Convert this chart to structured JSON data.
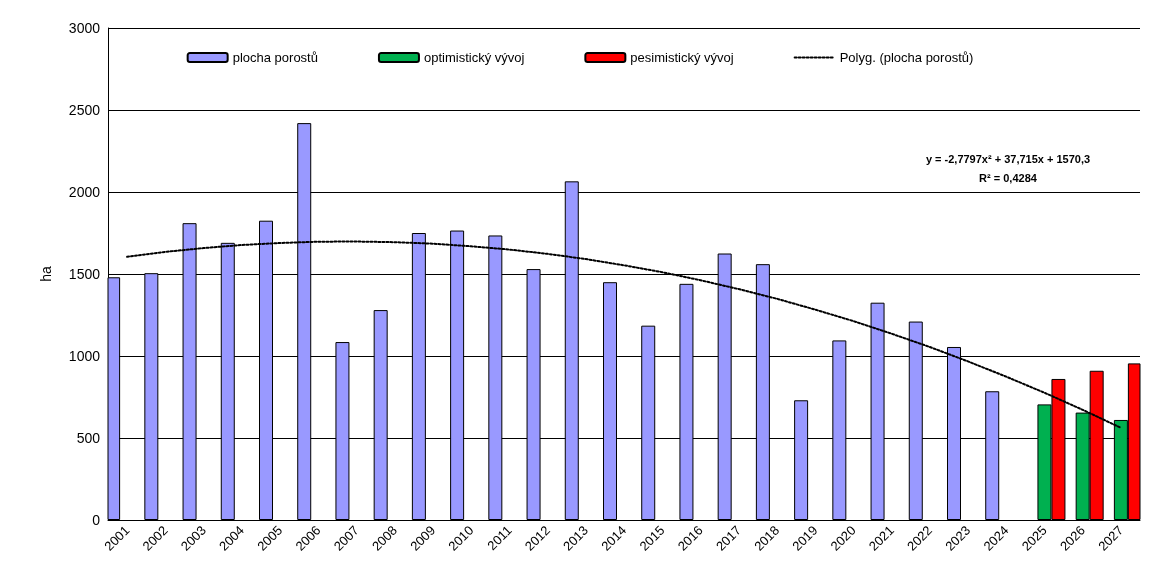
{
  "chart_data": {
    "type": "bar",
    "ylabel": "ha",
    "categories": [
      "2001",
      "2002",
      "2003",
      "2004",
      "2005",
      "2006",
      "2007",
      "2008",
      "2009",
      "2010",
      "2011",
      "2012",
      "2013",
      "2014",
      "2015",
      "2016",
      "2017",
      "2018",
      "2019",
      "2020",
      "2021",
      "2022",
      "2023",
      "2024",
      "2025",
      "2026",
      "2027"
    ],
    "series": [
      {
        "name": "plocha porostů",
        "color": "#9999ff",
        "values": [
          1480,
          1505,
          1810,
          1690,
          1825,
          2420,
          1085,
          1280,
          1750,
          1765,
          1735,
          1530,
          2065,
          1450,
          1185,
          1440,
          1625,
          1560,
          730,
          1095,
          1325,
          1210,
          1055,
          785,
          null,
          null,
          null
        ]
      },
      {
        "name": "optimistický vývoj",
        "color": "#00b050",
        "values": [
          null,
          null,
          null,
          null,
          null,
          null,
          null,
          null,
          null,
          null,
          null,
          null,
          null,
          null,
          null,
          null,
          null,
          null,
          null,
          null,
          null,
          null,
          null,
          null,
          705,
          655,
          610
        ]
      },
      {
        "name": "pesimistický vývoj",
        "color": "#ff0000",
        "values": [
          null,
          null,
          null,
          null,
          null,
          null,
          null,
          null,
          null,
          null,
          null,
          null,
          null,
          null,
          null,
          null,
          null,
          null,
          null,
          null,
          null,
          null,
          null,
          null,
          860,
          910,
          955
        ]
      },
      {
        "name": "Polyg. (plocha porostů)",
        "type": "line",
        "color": "#000000",
        "line_style": "dotted",
        "marker": "none",
        "values": [
          1605,
          1635,
          1658,
          1677,
          1689,
          1697,
          1698,
          1694,
          1685,
          1669,
          1649,
          1623,
          1591,
          1553,
          1511,
          1462,
          1408,
          1349,
          1283,
          1213,
          1136,
          1055,
          967,
          874,
          776,
          672,
          562
        ]
      }
    ],
    "ylim": [
      0,
      3000
    ],
    "yticks": [
      0,
      500,
      1000,
      1500,
      2000,
      2500,
      3000
    ],
    "grid": "y",
    "legend": "top",
    "annotations": [
      "y = -2,7797x² + 37,715x + 1570,3",
      "R² = 0,4284"
    ]
  }
}
